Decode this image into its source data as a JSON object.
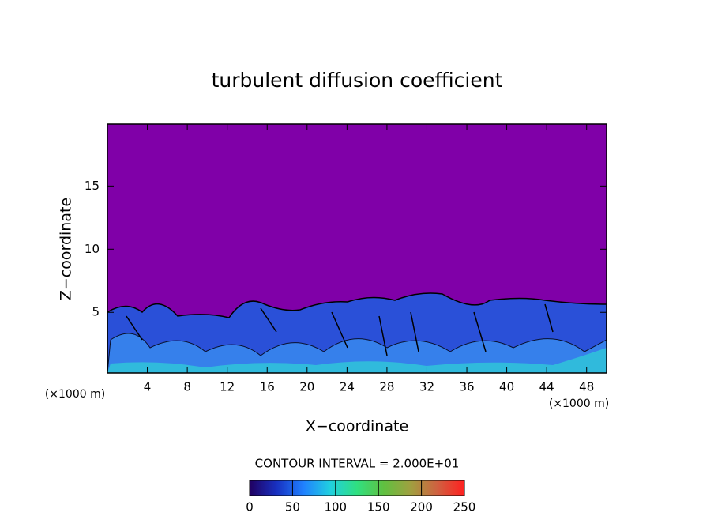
{
  "chart_data": {
    "type": "contour",
    "title": "turbulent diffusion coefficient",
    "x_label": "X−coordinate",
    "y_label": "Z−coordinate",
    "x_unit": "(×1000 m)",
    "x_unit_right": "(×1000 m)",
    "xlim": [
      0,
      50
    ],
    "xticks": [
      4,
      8,
      12,
      16,
      20,
      24,
      28,
      32,
      36,
      40,
      44,
      48
    ],
    "ylim": [
      0.2,
      19.9
    ],
    "yticks": [
      5,
      10,
      15
    ],
    "field_color": "#8000a8",
    "colorbar": {
      "label": "CONTOUR INTERVAL = 2.000E+01",
      "lim": [
        0,
        250
      ],
      "ticks": [
        0,
        50,
        100,
        150,
        200,
        250
      ],
      "colormap": [
        "#200060",
        "#1830c0",
        "#2080ff",
        "#20d0e0",
        "#30e080",
        "#60c040",
        "#a0a040",
        "#d06040",
        "#ff2020"
      ]
    }
  }
}
